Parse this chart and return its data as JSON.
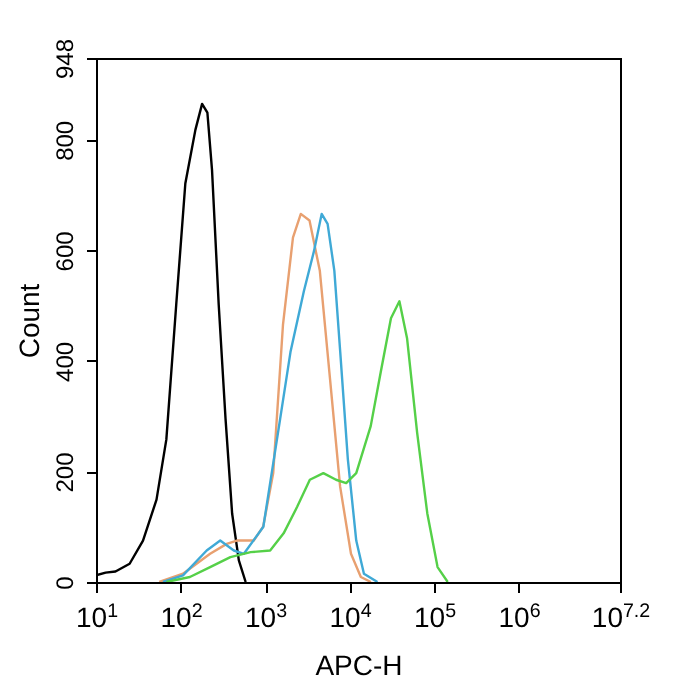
{
  "chart_data": {
    "type": "line",
    "xlabel": "APC-H",
    "ylabel": "Count",
    "log": "x",
    "grid": false,
    "xlim": [
      10,
      15848932
    ],
    "ylim": [
      0,
      948
    ],
    "xticks": [
      {
        "value": 10,
        "label": "10$^{1}$"
      },
      {
        "value": 100,
        "label": "10$^{2}$"
      },
      {
        "value": 1000,
        "label": "10$^{3}$"
      },
      {
        "value": 10000,
        "label": "10$^{4}$"
      },
      {
        "value": 100000,
        "label": "10$^{5}$"
      },
      {
        "value": 1000000,
        "label": "10$^{6}$"
      },
      {
        "value": 15848932,
        "label": "10$^{7.2}$"
      }
    ],
    "yticks": [
      0,
      200,
      400,
      600,
      800,
      948
    ],
    "series": [
      {
        "color": "#000000",
        "x": [
          10,
          13,
          17,
          25,
          36,
          52,
          68,
          89,
          114,
          150,
          180,
          208,
          236,
          283,
          341,
          408,
          490,
          590
        ],
        "values": [
          12,
          17,
          19,
          33,
          75,
          149,
          258,
          502,
          721,
          818,
          865,
          849,
          745,
          502,
          295,
          124,
          39,
          0
        ]
      },
      {
        "color": "#e8a070",
        "x": [
          56,
          107,
          224,
          352,
          464,
          735,
          950,
          1250,
          1630,
          2140,
          2650,
          3360,
          4450,
          5870,
          7730,
          10400,
          13600,
          17900
        ],
        "values": [
          0,
          15,
          51,
          69,
          75,
          75,
          100,
          197,
          465,
          623,
          666,
          654,
          563,
          368,
          173,
          51,
          9,
          0
        ]
      },
      {
        "color": "#3fa9d6",
        "x": [
          62,
          107,
          204,
          295,
          427,
          562,
          955,
          1510,
          2000,
          2880,
          3800,
          4680,
          5500,
          6610,
          7760,
          9550,
          12000,
          14800,
          21400
        ],
        "values": [
          0,
          12,
          57,
          75,
          57,
          51,
          100,
          295,
          416,
          526,
          599,
          666,
          648,
          563,
          416,
          222,
          75,
          15,
          0
        ]
      },
      {
        "color": "#55d048",
        "x": [
          68,
          129,
          224,
          389,
          676,
          1150,
          1660,
          2400,
          3390,
          4900,
          6920,
          9120,
          12000,
          17800,
          23400,
          30900,
          38900,
          47900,
          63100,
          83200,
          110000,
          145000
        ],
        "values": [
          0,
          9,
          27,
          45,
          54,
          57,
          88,
          136,
          185,
          197,
          185,
          179,
          197,
          282,
          380,
          477,
          508,
          441,
          270,
          124,
          27,
          0
        ]
      }
    ]
  }
}
